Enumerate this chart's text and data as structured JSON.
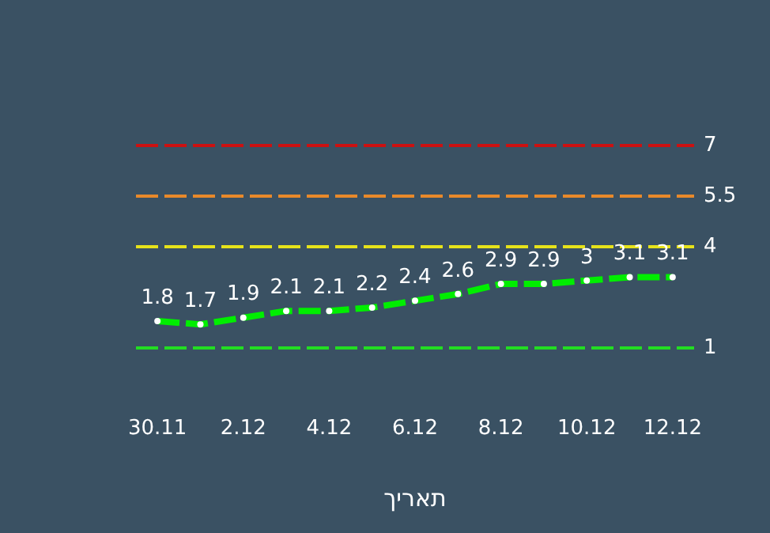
{
  "chart_data": {
    "type": "line",
    "xlabel": "תאריך",
    "categories": [
      "30.11",
      null,
      "2.12",
      null,
      "4.12",
      null,
      "6.12",
      null,
      "8.12",
      null,
      "10.12",
      null,
      "12.12"
    ],
    "series": [
      {
        "color": "#00ee00",
        "values": [
          1.8,
          1.7,
          1.9,
          2.1,
          2.1,
          2.2,
          2.4,
          2.6,
          2.9,
          2.9,
          3,
          3.1,
          3.1
        ]
      }
    ],
    "tick_labels": "x",
    "grid": false,
    "legend": false,
    "data_labels": true,
    "marker": "circle",
    "line_style": "dashed",
    "ref_lines": [
      {
        "axis": "y",
        "value": 7,
        "label": "7",
        "color": "#cc1111",
        "line_style": "dashed"
      },
      {
        "axis": "y",
        "value": 5.5,
        "label": "5.5",
        "color": "#e8892a",
        "line_style": "dashed"
      },
      {
        "axis": "y",
        "value": 4,
        "label": "4",
        "color": "#e6e21a",
        "line_style": "dashed"
      },
      {
        "axis": "y",
        "value": 1,
        "label": "1",
        "color": "#22dd22",
        "line_style": "dashed"
      }
    ]
  }
}
